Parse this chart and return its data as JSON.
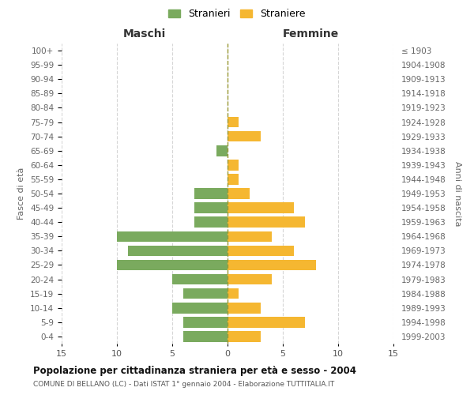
{
  "age_groups": [
    "100+",
    "95-99",
    "90-94",
    "85-89",
    "80-84",
    "75-79",
    "70-74",
    "65-69",
    "60-64",
    "55-59",
    "50-54",
    "45-49",
    "40-44",
    "35-39",
    "30-34",
    "25-29",
    "20-24",
    "15-19",
    "10-14",
    "5-9",
    "0-4"
  ],
  "birth_years": [
    "≤ 1903",
    "1904-1908",
    "1909-1913",
    "1914-1918",
    "1919-1923",
    "1924-1928",
    "1929-1933",
    "1934-1938",
    "1939-1943",
    "1944-1948",
    "1949-1953",
    "1954-1958",
    "1959-1963",
    "1964-1968",
    "1969-1973",
    "1974-1978",
    "1979-1983",
    "1984-1988",
    "1989-1993",
    "1994-1998",
    "1999-2003"
  ],
  "males": [
    0,
    0,
    0,
    0,
    0,
    0,
    0,
    1,
    0,
    0,
    3,
    3,
    3,
    10,
    9,
    10,
    5,
    4,
    5,
    4,
    4
  ],
  "females": [
    0,
    0,
    0,
    0,
    0,
    1,
    3,
    0,
    1,
    1,
    2,
    6,
    7,
    4,
    6,
    8,
    4,
    1,
    3,
    7,
    3
  ],
  "male_color": "#7aaa5e",
  "female_color": "#f5b731",
  "center_line_color": "#999933",
  "bg_color": "#ffffff",
  "grid_color": "#cccccc",
  "title": "Popolazione per cittadinanza straniera per età e sesso - 2004",
  "subtitle": "COMUNE DI BELLANO (LC) - Dati ISTAT 1° gennaio 2004 - Elaborazione TUTTITALIA.IT",
  "left_header": "Maschi",
  "right_header": "Femmine",
  "left_yaxis_label": "Fasce di età",
  "right_yaxis_label": "Anni di nascita",
  "legend_male": "Stranieri",
  "legend_female": "Straniere",
  "xlim": 15,
  "bar_height": 0.75
}
